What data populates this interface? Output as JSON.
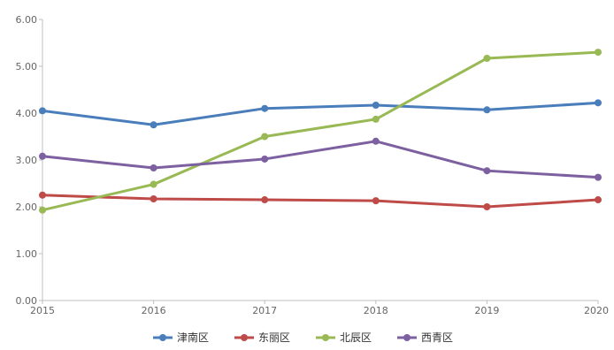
{
  "chart_data": {
    "type": "line",
    "x": [
      "2015",
      "2016",
      "2017",
      "2018",
      "2019",
      "2020"
    ],
    "yticks": [
      "0.00",
      "1.00",
      "2.00",
      "3.00",
      "4.00",
      "5.00",
      "6.00"
    ],
    "ylim": [
      0,
      6
    ],
    "grid": false,
    "legend_position": "bottom",
    "series": [
      {
        "name": "津南区",
        "color": "#4a7ebb",
        "values": [
          4.05,
          3.75,
          4.1,
          4.17,
          4.07,
          4.22
        ]
      },
      {
        "name": "东丽区",
        "color": "#be4b48",
        "values": [
          2.25,
          2.17,
          2.15,
          2.13,
          2.0,
          2.15
        ]
      },
      {
        "name": "北辰区",
        "color": "#98b954",
        "values": [
          1.93,
          2.48,
          3.5,
          3.87,
          5.17,
          5.3
        ]
      },
      {
        "name": "西青区",
        "color": "#7d60a0",
        "values": [
          3.08,
          2.83,
          3.02,
          3.4,
          2.77,
          2.63
        ]
      }
    ]
  }
}
